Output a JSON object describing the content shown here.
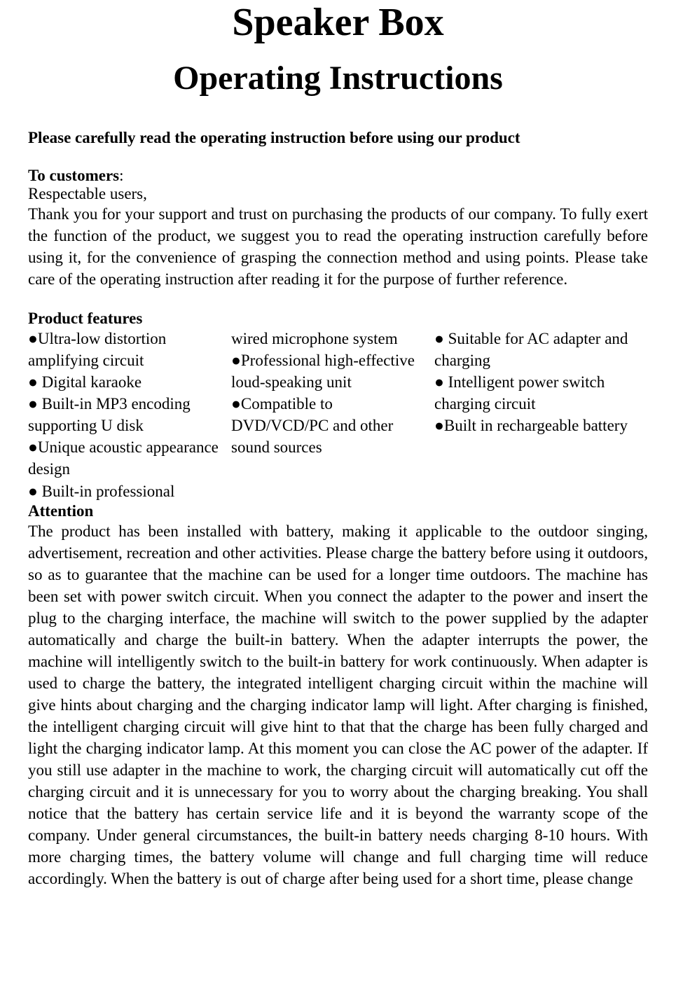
{
  "title1": "Speaker Box",
  "title2": "Operating Instructions",
  "intro": "Please carefully read the operating instruction before using our product",
  "customers": {
    "heading": "To customers",
    "colon": ":",
    "greeting": "Respectable users,",
    "body": "Thank you for your support and trust on purchasing the products of our company. To fully exert the function of the product, we suggest you to read the operating instruction carefully before using it, for the convenience of grasping the connection method and using points. Please take care of the operating instruction after reading it for the purpose of further reference."
  },
  "features": {
    "heading": "Product features",
    "col1": "●Ultra-low distortion amplifying circuit\n● Digital karaoke\n● Built-in MP3 encoding supporting U disk\n●Unique acoustic appearance design\n● Built-in professional",
    "col2": "wired   microphone system\n●Professional high-effective loud-speaking unit\n●Compatible to DVD/VCD/PC and other sound sources",
    "col3": "● Suitable for AC adapter and charging\n● Intelligent power switch charging circuit\n●Built in rechargeable battery"
  },
  "attention": {
    "heading": "Attention",
    "body": "The product has been installed with battery, making it applicable to the outdoor singing, advertisement, recreation and other activities. Please charge the battery before using it outdoors, so as to guarantee that the machine can be used for a longer time outdoors. The machine has been set with power switch circuit. When you connect the adapter to the power and insert the plug to the charging interface, the machine will switch to the power supplied by the adapter automatically and charge the built-in battery. When the adapter interrupts the power, the machine will intelligently switch to the built-in battery for work continuously. When adapter is used to charge the battery, the integrated intelligent charging circuit within the machine will give hints about charging and the charging indicator lamp will light. After charging is finished, the intelligent charging circuit will give hint to that that the charge has been fully charged and light the charging indicator lamp. At this moment you can close the AC power of the adapter. If you still use adapter in the machine to work, the charging circuit will automatically cut off the charging circuit and it is unnecessary for you to worry about the charging breaking. You shall notice that the battery has certain service life and it is beyond the warranty scope of the company. Under general circumstances, the built-in battery needs charging 8-10 hours. With more charging times, the battery volume will change and full charging time will reduce accordingly. When the battery is out of charge after being used for a short time, please change"
  }
}
